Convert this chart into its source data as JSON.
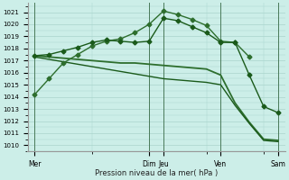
{
  "xlabel": "Pression niveau de la mer( hPa )",
  "bg_color": "#cceee8",
  "grid_color": "#aad4cc",
  "vline_color": "#4a7a5a",
  "x_positions": {
    "Mer": 0,
    "Dim": 8,
    "Jeu": 9,
    "Ven": 13,
    "Sam": 17
  },
  "xlim": [
    -0.5,
    17.5
  ],
  "ylim": [
    1009.5,
    1021.8
  ],
  "yticks": [
    1010,
    1011,
    1012,
    1013,
    1014,
    1015,
    1016,
    1017,
    1018,
    1019,
    1020,
    1021
  ],
  "xtick_positions": [
    0,
    8,
    9,
    13,
    17
  ],
  "xtick_labels": [
    "Mer",
    "Dim",
    "Jeu",
    "Ven",
    "Sam"
  ],
  "vlines": [
    0,
    8,
    9,
    13,
    17
  ],
  "series": [
    {
      "x": [
        0,
        1,
        2,
        3,
        4,
        5,
        6,
        7,
        8,
        9,
        10,
        11,
        12,
        13,
        14,
        15,
        16,
        17
      ],
      "y": [
        1014.2,
        1015.5,
        1016.8,
        1017.5,
        1018.2,
        1018.6,
        1018.8,
        1019.3,
        1020.0,
        1021.1,
        1020.8,
        1020.4,
        1019.9,
        1018.6,
        1018.5,
        1017.3,
        null,
        null
      ],
      "has_markers": true,
      "marker": "D",
      "ms": 2.5,
      "lw": 1.0,
      "color": "#2d6e2d"
    },
    {
      "x": [
        0,
        1,
        2,
        3,
        4,
        5,
        6,
        7,
        8,
        9,
        10,
        11,
        12,
        13,
        14,
        15,
        16,
        17
      ],
      "y": [
        1017.4,
        1017.5,
        1017.8,
        1018.1,
        1018.5,
        1018.7,
        1018.6,
        1018.5,
        1018.6,
        1020.5,
        1020.3,
        1019.8,
        1019.3,
        1018.5,
        1018.5,
        1015.8,
        1013.2,
        1012.7
      ],
      "has_markers": true,
      "marker": "D",
      "ms": 2.5,
      "lw": 1.0,
      "color": "#1a5a1a"
    },
    {
      "x": [
        0,
        1,
        2,
        3,
        4,
        5,
        6,
        7,
        8,
        9,
        10,
        11,
        12,
        13,
        14,
        15,
        16,
        17
      ],
      "y": [
        1017.4,
        1017.3,
        1017.2,
        1017.1,
        1017.0,
        1016.9,
        1016.8,
        1016.8,
        1016.7,
        1016.6,
        1016.5,
        1016.4,
        1016.3,
        1015.8,
        1013.5,
        1011.9,
        1010.5,
        1010.4
      ],
      "has_markers": false,
      "marker": null,
      "ms": 0,
      "lw": 1.3,
      "color": "#2d6e2d"
    },
    {
      "x": [
        0,
        1,
        2,
        3,
        4,
        5,
        6,
        7,
        8,
        9,
        10,
        11,
        12,
        13,
        14,
        15,
        16,
        17
      ],
      "y": [
        1017.3,
        1017.1,
        1016.9,
        1016.7,
        1016.5,
        1016.3,
        1016.1,
        1015.9,
        1015.7,
        1015.5,
        1015.4,
        1015.3,
        1015.2,
        1015.0,
        1013.3,
        1011.8,
        1010.4,
        1010.3
      ],
      "has_markers": false,
      "marker": null,
      "ms": 0,
      "lw": 1.0,
      "color": "#1a5a1a"
    }
  ],
  "figsize": [
    3.2,
    2.0
  ],
  "dpi": 100
}
